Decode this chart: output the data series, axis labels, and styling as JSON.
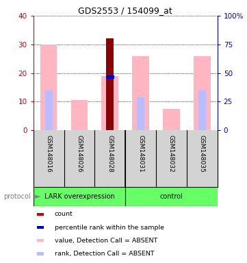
{
  "title": "GDS2553 / 154099_at",
  "samples": [
    "GSM148016",
    "GSM148026",
    "GSM148028",
    "GSM148031",
    "GSM148032",
    "GSM148035"
  ],
  "left_ylim": [
    0,
    40
  ],
  "right_ylim": [
    0,
    100
  ],
  "left_yticks": [
    0,
    10,
    20,
    30,
    40
  ],
  "right_yticks": [
    0,
    25,
    50,
    75,
    100
  ],
  "right_yticklabels": [
    "0",
    "25",
    "50",
    "75",
    "100%"
  ],
  "count_values": [
    0,
    0,
    32,
    0,
    0,
    0
  ],
  "count_color": "#8B0000",
  "percentile_rank_values": [
    0,
    0,
    18.5,
    0,
    0,
    0
  ],
  "percentile_rank_color": "#0000CC",
  "absent_value_heights": [
    30,
    10.5,
    19,
    26,
    7.5,
    26
  ],
  "absent_value_color": "#FFB6C1",
  "absent_rank_heights": [
    14,
    0,
    0,
    11.5,
    0,
    14
  ],
  "absent_rank_color": "#BBBBFF",
  "absent_value_bar_width": 0.55,
  "absent_rank_bar_width": 0.25,
  "count_bar_width": 0.25,
  "percentile_bar_width": 0.28,
  "percentile_bar_height": 1.2,
  "legend_items": [
    {
      "color": "#CC0000",
      "label": "count"
    },
    {
      "color": "#0000CC",
      "label": "percentile rank within the sample"
    },
    {
      "color": "#FFB6C1",
      "label": "value, Detection Call = ABSENT"
    },
    {
      "color": "#BBBBFF",
      "label": "rank, Detection Call = ABSENT"
    }
  ],
  "background_color": "#FFFFFF",
  "axis_color_left": "#CC0000",
  "axis_color_right": "#0000CC",
  "sample_bg_color": "#D3D3D3",
  "group_color": "#66FF66",
  "lark_group_label": "LARK overexpression",
  "control_group_label": "control",
  "protocol_label": "protocol"
}
